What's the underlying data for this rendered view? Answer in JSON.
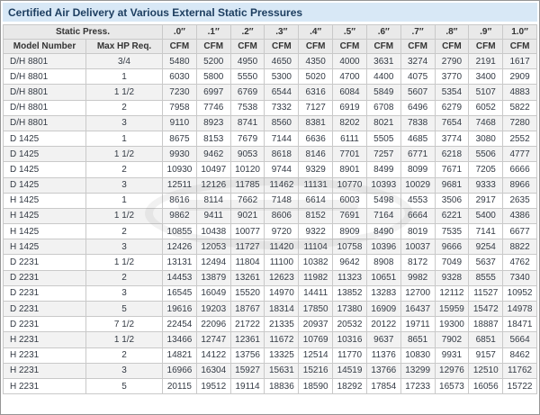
{
  "colors": {
    "outer_border": "#959595",
    "title_bg": "#d8e8f6",
    "title_text": "#1c3d5f",
    "header_bg": "#e9e9e9",
    "header_text": "#333333",
    "grid_border": "#c9c9c9",
    "stripe_bg": "#f2f2f2",
    "data_text": "#333a44"
  },
  "chart_data": {
    "type": "table",
    "title": "Certified Air Delivery at Various External Static Pressures",
    "header": {
      "static_press": "Static Press.",
      "model": "Model Number",
      "hp": "Max HP Req.",
      "unit": "CFM",
      "pressures": [
        ".0″",
        ".1″",
        ".2″",
        ".3″",
        ".4″",
        ".5″",
        ".6″",
        ".7″",
        ".8″",
        ".9″",
        "1.0″"
      ]
    },
    "rows": [
      {
        "model": "D/H 8801",
        "hp": "3/4",
        "cfm": [
          5480,
          5200,
          4950,
          4650,
          4350,
          4000,
          3631,
          3274,
          2790,
          2191,
          1617
        ]
      },
      {
        "model": "D/H 8801",
        "hp": "1",
        "cfm": [
          6030,
          5800,
          5550,
          5300,
          5020,
          4700,
          4400,
          4075,
          3770,
          3400,
          2909
        ]
      },
      {
        "model": "D/H 8801",
        "hp": "1 1/2",
        "cfm": [
          7230,
          6997,
          6769,
          6544,
          6316,
          6084,
          5849,
          5607,
          5354,
          5107,
          4883
        ]
      },
      {
        "model": "D/H 8801",
        "hp": "2",
        "cfm": [
          7958,
          7746,
          7538,
          7332,
          7127,
          6919,
          6708,
          6496,
          6279,
          6052,
          5822
        ]
      },
      {
        "model": "D/H 8801",
        "hp": "3",
        "cfm": [
          9110,
          8923,
          8741,
          8560,
          8381,
          8202,
          8021,
          7838,
          7654,
          7468,
          7280
        ]
      },
      {
        "model": "D 1425",
        "hp": "1",
        "cfm": [
          8675,
          8153,
          7679,
          7144,
          6636,
          6111,
          5505,
          4685,
          3774,
          3080,
          2552
        ]
      },
      {
        "model": "D 1425",
        "hp": "1 1/2",
        "cfm": [
          9930,
          9462,
          9053,
          8618,
          8146,
          7701,
          7257,
          6771,
          6218,
          5506,
          4777
        ]
      },
      {
        "model": "D 1425",
        "hp": "2",
        "cfm": [
          10930,
          10497,
          10120,
          9744,
          9329,
          8901,
          8499,
          8099,
          7671,
          7205,
          6666
        ]
      },
      {
        "model": "D 1425",
        "hp": "3",
        "cfm": [
          12511,
          12126,
          11785,
          11462,
          11131,
          10770,
          10393,
          10029,
          9681,
          9333,
          8966
        ]
      },
      {
        "model": "H 1425",
        "hp": "1",
        "cfm": [
          8616,
          8114,
          7662,
          7148,
          6614,
          6003,
          5498,
          4553,
          3506,
          2917,
          2635
        ]
      },
      {
        "model": "H 1425",
        "hp": "1 1/2",
        "cfm": [
          9862,
          9411,
          9021,
          8606,
          8152,
          7691,
          7164,
          6664,
          6221,
          5400,
          4386
        ]
      },
      {
        "model": "H 1425",
        "hp": "2",
        "cfm": [
          10855,
          10438,
          10077,
          9720,
          9322,
          8909,
          8490,
          8019,
          7535,
          7141,
          6677
        ]
      },
      {
        "model": "H 1425",
        "hp": "3",
        "cfm": [
          12426,
          12053,
          11727,
          11420,
          11104,
          10758,
          10396,
          10037,
          9666,
          9254,
          8822
        ]
      },
      {
        "model": "D 2231",
        "hp": "1 1/2",
        "cfm": [
          13131,
          12494,
          11804,
          11100,
          10382,
          9642,
          8908,
          8172,
          7049,
          5637,
          4762
        ]
      },
      {
        "model": "D 2231",
        "hp": "2",
        "cfm": [
          14453,
          13879,
          13261,
          12623,
          11982,
          11323,
          10651,
          9982,
          9328,
          8555,
          7340
        ]
      },
      {
        "model": "D 2231",
        "hp": "3",
        "cfm": [
          16545,
          16049,
          15520,
          14970,
          14411,
          13852,
          13283,
          12700,
          12112,
          11527,
          10952
        ]
      },
      {
        "model": "D 2231",
        "hp": "5",
        "cfm": [
          19616,
          19203,
          18767,
          18314,
          17850,
          17380,
          16909,
          16437,
          15959,
          15472,
          14978
        ]
      },
      {
        "model": "D 2231",
        "hp": "7 1/2",
        "cfm": [
          22454,
          22096,
          21722,
          21335,
          20937,
          20532,
          20122,
          19711,
          19300,
          18887,
          18471
        ]
      },
      {
        "model": "H 2231",
        "hp": "1 1/2",
        "cfm": [
          13466,
          12747,
          12361,
          11672,
          10769,
          10316,
          9637,
          8651,
          7902,
          6851,
          5664
        ]
      },
      {
        "model": "H 2231",
        "hp": "2",
        "cfm": [
          14821,
          14122,
          13756,
          13325,
          12514,
          11770,
          11376,
          10830,
          9931,
          9157,
          8462
        ]
      },
      {
        "model": "H 2231",
        "hp": "3",
        "cfm": [
          16966,
          16304,
          15927,
          15631,
          15216,
          14519,
          13766,
          13299,
          12976,
          12510,
          11762
        ]
      },
      {
        "model": "H 2231",
        "hp": "5",
        "cfm": [
          20115,
          19512,
          19114,
          18836,
          18590,
          18292,
          17854,
          17233,
          16573,
          16056,
          15722
        ]
      }
    ]
  }
}
